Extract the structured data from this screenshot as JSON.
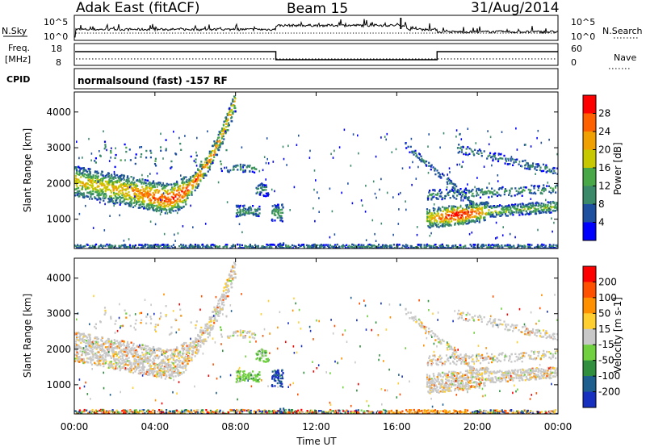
{
  "header": {
    "station": "Adak East (fitACF)",
    "beam": "Beam 15",
    "date": "31/Aug/2014"
  },
  "panels": {
    "nsky": {
      "label": "N.Sky",
      "left_ticks": [
        "10^5",
        "10^0"
      ],
      "right_ticks": [
        "10^5",
        "10^0"
      ],
      "right_label": "N.Search"
    },
    "freq": {
      "label_line1": "Freq.",
      "label_line2": "[MHz]",
      "left_ticks": [
        "18",
        "8"
      ],
      "right_ticks": [
        "60",
        "0"
      ],
      "right_label": "Nave",
      "steps": [
        {
          "from_h": 0,
          "to_h": 10,
          "level": "high"
        },
        {
          "from_h": 10,
          "to_h": 18,
          "level": "low"
        },
        {
          "from_h": 18,
          "to_h": 24,
          "level": "high"
        }
      ]
    },
    "cpid": {
      "label": "CPID",
      "text": "normalsound (fast) -157 RF"
    }
  },
  "chart_data": [
    {
      "type": "heatmap",
      "name": "Power",
      "ylabel": "Slant Range [km]",
      "y_ticks": [
        1000,
        2000,
        3000,
        4000
      ],
      "ylim": [
        180,
        4560
      ],
      "colorbar": {
        "label": "Power [dB]",
        "ticks": [
          4,
          8,
          12,
          16,
          20,
          24,
          28
        ],
        "colors": [
          "#0000ff",
          "#1f4f9f",
          "#3a8a6a",
          "#48a848",
          "#c8c800",
          "#f0a000",
          "#ff6000",
          "#ff0000"
        ]
      }
    },
    {
      "type": "heatmap",
      "name": "Velocity",
      "ylabel": "Slant Range [km]",
      "y_ticks": [
        1000,
        2000,
        3000,
        4000
      ],
      "ylim": [
        180,
        4560
      ],
      "colorbar": {
        "label": "Velocity [m s-1]",
        "ticks": [
          200,
          100,
          50,
          15,
          -15,
          -50,
          -100,
          -200
        ],
        "colors": [
          "#1830c0",
          "#1d5f8f",
          "#2f8f3f",
          "#70d040",
          "#c8c8c8",
          "#ffcf30",
          "#ff9000",
          "#ff5000",
          "#ff0000"
        ]
      }
    }
  ],
  "x_axis": {
    "ticks": [
      "00:00",
      "04:00",
      "08:00",
      "12:00",
      "16:00",
      "20:00",
      "00:00"
    ],
    "xlim_hours": [
      0,
      24
    ],
    "label": "Time UT"
  }
}
